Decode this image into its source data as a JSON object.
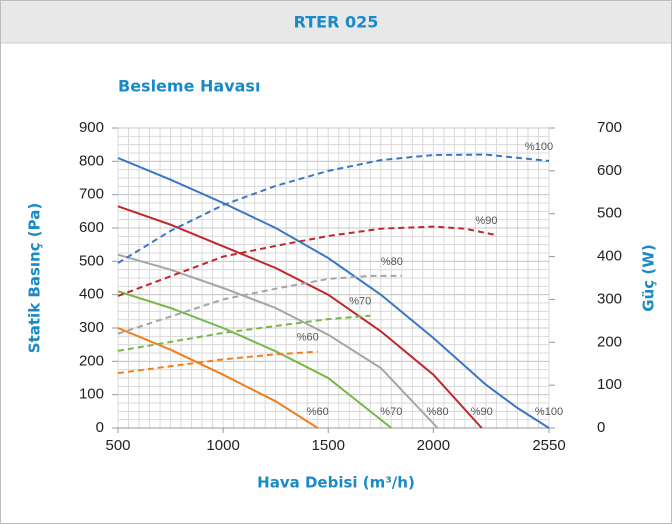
{
  "chart_data": {
    "type": "line",
    "title": "RTER 025",
    "subtitle": "Besleme Havası",
    "x_label": "Hava Debisi (m³/h)",
    "y_label": "Statik Basınç (Pa)",
    "y2_label": "Güç (W)",
    "xlim": [
      500,
      2550
    ],
    "xticks": [
      500,
      1000,
      1500,
      2000,
      2550
    ],
    "ylim": [
      0,
      900
    ],
    "yticks": [
      0,
      100,
      200,
      300,
      400,
      500,
      600,
      700,
      800,
      900
    ],
    "y2lim": [
      0,
      700
    ],
    "y2ticks": [
      0,
      100,
      200,
      300,
      400,
      500,
      600,
      700
    ],
    "grid": true,
    "series": [
      {
        "name": "%100",
        "color": "#3a78c3",
        "dash": false,
        "x": [
          500,
          750,
          1000,
          1250,
          1500,
          1750,
          2000,
          2250,
          2400,
          2550
        ],
        "values": [
          810,
          745,
          675,
          600,
          510,
          400,
          270,
          130,
          60,
          0
        ]
      },
      {
        "name": "%90",
        "color": "#c0272d",
        "dash": false,
        "x": [
          500,
          750,
          1000,
          1250,
          1500,
          1750,
          2000,
          2230
        ],
        "values": [
          665,
          610,
          545,
          480,
          400,
          290,
          160,
          0
        ]
      },
      {
        "name": "%80",
        "color": "#a5a5a5",
        "dash": false,
        "x": [
          500,
          750,
          1000,
          1250,
          1500,
          1750,
          2020
        ],
        "values": [
          520,
          475,
          420,
          360,
          280,
          180,
          0
        ]
      },
      {
        "name": "%70",
        "color": "#7ab648",
        "dash": false,
        "x": [
          500,
          750,
          1000,
          1250,
          1500,
          1800
        ],
        "values": [
          410,
          360,
          300,
          230,
          150,
          0
        ]
      },
      {
        "name": "%60",
        "color": "#f07f1e",
        "dash": false,
        "x": [
          500,
          750,
          1000,
          1250,
          1450
        ],
        "values": [
          300,
          235,
          160,
          80,
          0
        ]
      },
      {
        "name": "%100",
        "color": "#3a78c3",
        "dash": true,
        "axis": "y2",
        "x": [
          500,
          750,
          1000,
          1250,
          1500,
          1750,
          2000,
          2250,
          2550
        ],
        "values": [
          385,
          460,
          520,
          565,
          600,
          625,
          637,
          638,
          623
        ]
      },
      {
        "name": "%90",
        "color": "#c0272d",
        "dash": true,
        "axis": "y2",
        "x": [
          500,
          1000,
          1250,
          1500,
          1750,
          2000,
          2150,
          2300
        ],
        "values": [
          308,
          400,
          425,
          448,
          465,
          470,
          465,
          450
        ]
      },
      {
        "name": "%80",
        "color": "#a5a5a5",
        "dash": true,
        "axis": "y2",
        "x": [
          500,
          1000,
          1250,
          1500,
          1700,
          1850
        ],
        "values": [
          220,
          300,
          325,
          348,
          355,
          355
        ]
      },
      {
        "name": "%70",
        "color": "#7ab648",
        "dash": true,
        "axis": "y2",
        "x": [
          500,
          1000,
          1500,
          1700
        ],
        "values": [
          180,
          222,
          254,
          262
        ]
      },
      {
        "name": "%60",
        "color": "#f07f1e",
        "dash": true,
        "axis": "y2",
        "x": [
          500,
          1000,
          1250,
          1450
        ],
        "values": [
          128,
          160,
          172,
          178
        ]
      }
    ]
  }
}
